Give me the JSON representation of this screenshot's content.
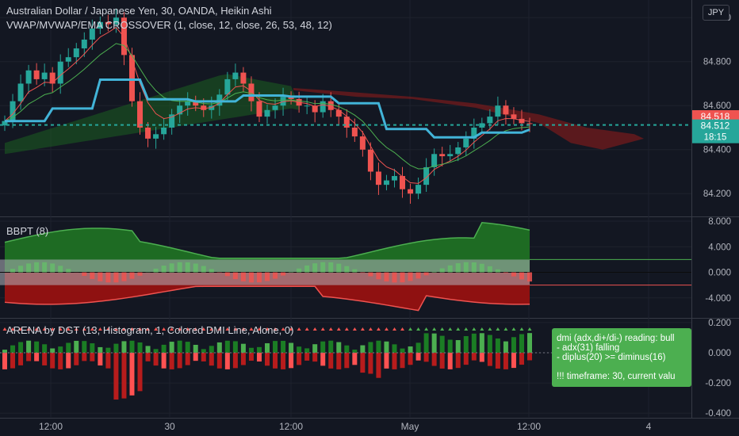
{
  "header": {
    "symbol_line": "Australian Dollar / Japanese Yen, 30, OANDA, Heikin Ashi",
    "indicator_line": "VWAP/MVWAP/EMA CROSSOVER (1, close, 12, close, 26, 53, 48, 12)",
    "currency": "JPY"
  },
  "panes": {
    "bbpt_title": "BBPT (8)",
    "arena_title": "ARENA by DGT (13, Histogram, 1, Colored DMI Line, Alone, 0)"
  },
  "tooltip": {
    "lines": [
      "dmi (adx,di+/di-) reading: bull",
      "- adx(31) falling",
      "- diplus(20) >= diminus(16)",
      "",
      "!!! timeframe: 30, current valu"
    ]
  },
  "chart_data": [
    {
      "type": "candlestick",
      "title": "Australian Dollar / Japanese Yen, 30, OANDA, Heikin Ashi",
      "y_ticks": [
        "85.000",
        "84.800",
        "84.600",
        "84.400",
        "84.200"
      ],
      "ylim": [
        84.1,
        85.08
      ],
      "price_labels": [
        {
          "value": "84.518",
          "color": "#ef5350"
        },
        {
          "value": "84.512",
          "color": "#26a69a",
          "sub": "18:15"
        }
      ],
      "x_tick_labels": [
        "12:00",
        "30",
        "12:00",
        "May",
        "12:00",
        "4"
      ],
      "close_path": [
        84.53,
        84.62,
        84.7,
        84.76,
        84.72,
        84.75,
        84.7,
        84.8,
        84.82,
        84.86,
        84.9,
        84.95,
        84.98,
        84.97,
        85.0,
        84.83,
        84.62,
        84.5,
        84.45,
        84.47,
        84.5,
        84.56,
        84.6,
        84.62,
        84.6,
        84.58,
        84.6,
        84.65,
        84.72,
        84.75,
        84.7,
        84.62,
        84.55,
        84.58,
        84.6,
        84.64,
        84.63,
        84.6,
        84.6,
        84.57,
        84.62,
        84.58,
        84.55,
        84.5,
        84.46,
        84.4,
        84.3,
        84.24,
        84.26,
        84.28,
        84.22,
        84.2,
        84.24,
        84.32,
        84.38,
        84.37,
        84.38,
        84.41,
        84.45,
        84.5,
        84.52,
        84.55,
        84.6,
        84.56,
        84.54,
        84.52,
        84.518
      ]
    },
    {
      "type": "area",
      "title": "BBPT (8)",
      "y_ticks": [
        "8.000",
        "4.000",
        "0.000",
        "-4.000"
      ],
      "ylim": [
        -7,
        8.5
      ],
      "band_levels": {
        "upper": 2.0,
        "lower": -2.0
      }
    },
    {
      "type": "bar",
      "title": "ARENA by DGT (13, Histogram, 1, Colored DMI Line, Alone, 0)",
      "y_ticks": [
        "0.200",
        "0.000",
        "-0.200",
        "-0.400"
      ],
      "ylim": [
        -0.42,
        0.22
      ]
    }
  ]
}
